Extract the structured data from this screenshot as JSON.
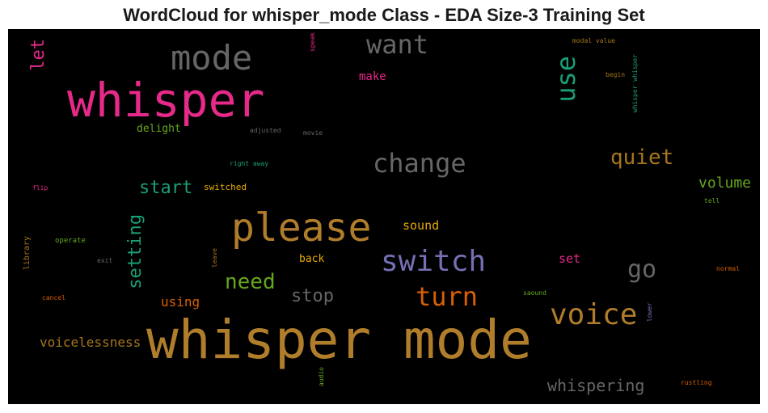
{
  "chart_data": {
    "type": "wordcloud",
    "title": "WordCloud for whisper_mode Class - EDA Size-3 Training Set",
    "background": "#000000",
    "words": [
      {
        "text": "whisper mode",
        "color": "#b07d2b"
      },
      {
        "text": "whisper",
        "color": "#e7298a"
      },
      {
        "text": "please",
        "color": "#b07d2b"
      },
      {
        "text": "mode",
        "color": "#666666"
      },
      {
        "text": "switch",
        "color": "#7570b3"
      },
      {
        "text": "voice",
        "color": "#b07d2b"
      },
      {
        "text": "change",
        "color": "#666666"
      },
      {
        "text": "want",
        "color": "#666666"
      },
      {
        "text": "turn",
        "color": "#d95f02"
      },
      {
        "text": "use",
        "color": "#1b9e77"
      },
      {
        "text": "quiet",
        "color": "#a6761d"
      },
      {
        "text": "go",
        "color": "#666666"
      },
      {
        "text": "need",
        "color": "#66a61e"
      },
      {
        "text": "setting",
        "color": "#1b9e77"
      },
      {
        "text": "start",
        "color": "#1b9e77"
      },
      {
        "text": "stop",
        "color": "#666666"
      },
      {
        "text": "let",
        "color": "#e7298a"
      },
      {
        "text": "whispering",
        "color": "#666666"
      },
      {
        "text": "volume",
        "color": "#66a61e"
      },
      {
        "text": "voicelessness",
        "color": "#a6761d"
      },
      {
        "text": "using",
        "color": "#d95f02"
      },
      {
        "text": "sound",
        "color": "#e6ab02"
      },
      {
        "text": "set",
        "color": "#e7298a"
      },
      {
        "text": "make",
        "color": "#e7298a"
      },
      {
        "text": "delight",
        "color": "#66a61e"
      },
      {
        "text": "back",
        "color": "#e6ab02"
      },
      {
        "text": "switched",
        "color": "#e6ab02"
      },
      {
        "text": "library",
        "color": "#a6761d"
      },
      {
        "text": "operate",
        "color": "#66a61e"
      },
      {
        "text": "exit",
        "color": "#666666"
      },
      {
        "text": "cancel",
        "color": "#d95f02"
      },
      {
        "text": "flip",
        "color": "#e7298a"
      },
      {
        "text": "adjusted",
        "color": "#666666"
      },
      {
        "text": "movie",
        "color": "#666666"
      },
      {
        "text": "right away",
        "color": "#1b9e77"
      },
      {
        "text": "speak",
        "color": "#e7298a"
      },
      {
        "text": "modal value",
        "color": "#a6761d"
      },
      {
        "text": "begin",
        "color": "#a6761d"
      },
      {
        "text": "whisper whisper",
        "color": "#1b9e77"
      },
      {
        "text": "tell",
        "color": "#66a61e"
      },
      {
        "text": "normal",
        "color": "#d95f02"
      },
      {
        "text": "saound",
        "color": "#66a61e"
      },
      {
        "text": "lower",
        "color": "#7570b3"
      },
      {
        "text": "rustling",
        "color": "#d95f02"
      },
      {
        "text": "audio",
        "color": "#66a61e"
      },
      {
        "text": "leave",
        "color": "#a6761d"
      }
    ]
  }
}
